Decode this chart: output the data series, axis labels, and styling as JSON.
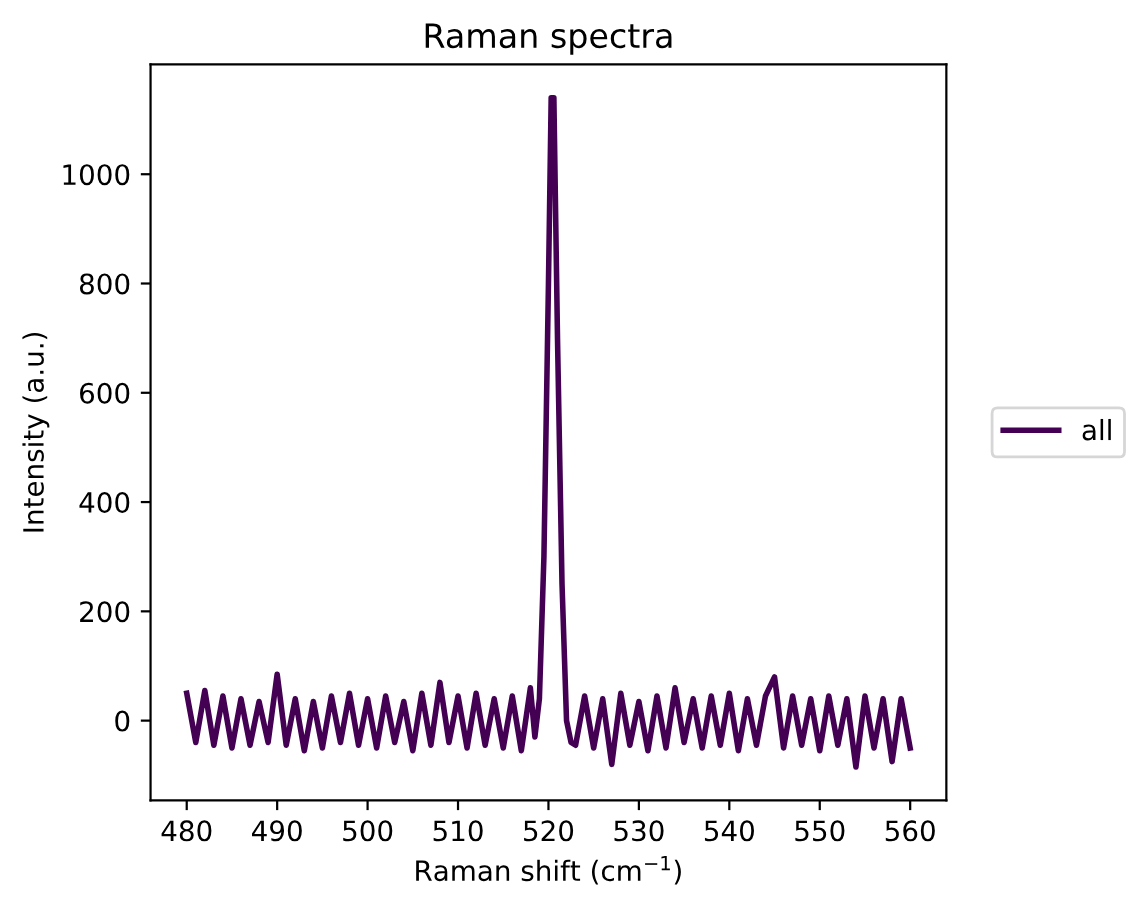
{
  "chart_data": {
    "type": "line",
    "title": "Raman spectra",
    "xlabel": "Raman shift (cm$^{−1}$)",
    "ylabel": "Intensity (a.u.)",
    "x": [
      480,
      481,
      482,
      483,
      484,
      485,
      486,
      487,
      488,
      489,
      490,
      491,
      492,
      493,
      494,
      495,
      496,
      497,
      498,
      499,
      500,
      501,
      502,
      503,
      504,
      505,
      506,
      507,
      508,
      509,
      510,
      511,
      512,
      513,
      514,
      515,
      516,
      517,
      518,
      518.5,
      519,
      519.5,
      520,
      520.3,
      520.6,
      521,
      521.5,
      522,
      522.5,
      523,
      524,
      525,
      526,
      527,
      528,
      529,
      530,
      531,
      532,
      533,
      534,
      535,
      536,
      537,
      538,
      539,
      540,
      541,
      542,
      543,
      544,
      545,
      546,
      547,
      548,
      549,
      550,
      551,
      552,
      553,
      554,
      555,
      556,
      557,
      558,
      559,
      560
    ],
    "series": [
      {
        "name": "all",
        "color": "#440154",
        "values": [
          50,
          -40,
          55,
          -45,
          45,
          -50,
          40,
          -45,
          35,
          -40,
          85,
          -45,
          40,
          -55,
          35,
          -50,
          45,
          -40,
          50,
          -45,
          40,
          -50,
          45,
          -40,
          35,
          -55,
          50,
          -45,
          70,
          -40,
          45,
          -50,
          50,
          -45,
          40,
          -50,
          45,
          -55,
          60,
          -30,
          40,
          300,
          800,
          1140,
          1140,
          700,
          250,
          0,
          -40,
          -45,
          45,
          -50,
          40,
          -80,
          50,
          -45,
          35,
          -55,
          45,
          -50,
          60,
          -40,
          40,
          -50,
          45,
          -45,
          50,
          -55,
          40,
          -45,
          45,
          80,
          -50,
          45,
          -45,
          40,
          -55,
          45,
          -45,
          40,
          -85,
          45,
          -50,
          40,
          -75,
          40,
          -50
        ]
      }
    ],
    "xlim": [
      476,
      564
    ],
    "ylim": [
      -146,
      1201
    ],
    "xticks": [
      480,
      490,
      500,
      510,
      520,
      530,
      540,
      550,
      560
    ],
    "yticks": [
      0,
      200,
      400,
      600,
      800,
      1000
    ],
    "grid": false,
    "legend": "right",
    "line_style": "solid",
    "marker": "none"
  }
}
